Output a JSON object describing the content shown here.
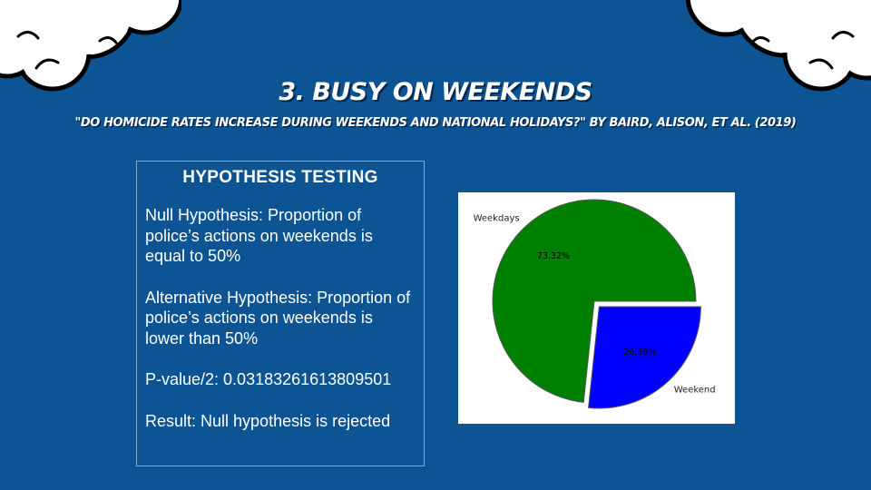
{
  "slide": {
    "title": "3. BUSY ON WEEKENDS",
    "subtitle": "\"DO HOMICIDE RATES INCREASE DURING WEEKENDS AND NATIONAL HOLIDAYS?\" BY BAIRD, ALISON, ET AL. (2019)",
    "background_color": "#0c5494"
  },
  "panel": {
    "heading": "HYPOTHESIS TESTING",
    "null_hypothesis": "Null Hypothesis: Proportion of police’s actions on weekends is equal to 50%",
    "alternative_hypothesis": "Alternative Hypothesis: Proportion of police’s actions on weekends is lower than 50%",
    "p_value": "P-value/2: 0.03183261613809501",
    "result": "Result: Null hypothesis is rejected"
  },
  "chart_data": {
    "type": "pie",
    "categories": [
      "Weekdays",
      "Weekend"
    ],
    "values": [
      73.32,
      26.68
    ],
    "pct_labels": [
      "73.32%",
      "26.68%"
    ],
    "colors": [
      "#008000",
      "#0000ff"
    ],
    "exploded": [
      "Weekend"
    ]
  }
}
